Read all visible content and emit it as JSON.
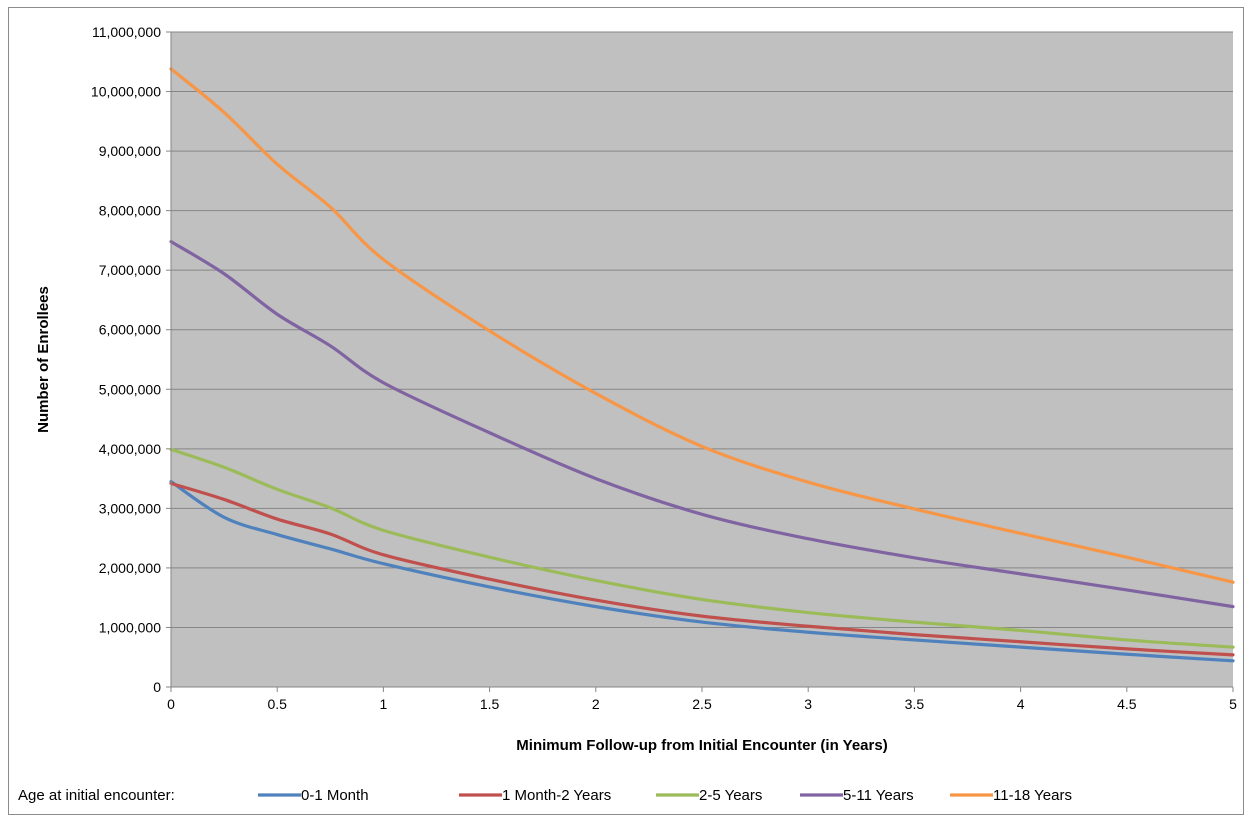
{
  "chart_data": {
    "type": "line",
    "xlabel": "Minimum Follow-up from Initial Encounter (in Years)",
    "ylabel": "Number of Enrollees",
    "xlim": [
      0,
      5
    ],
    "ylim": [
      0,
      11000000
    ],
    "x_ticks": [
      "0",
      "0.5",
      "1",
      "1.5",
      "2",
      "2.5",
      "3",
      "3.5",
      "4",
      "4.5",
      "5"
    ],
    "y_ticks": [
      "0",
      "1,000,000",
      "2,000,000",
      "3,000,000",
      "4,000,000",
      "5,000,000",
      "6,000,000",
      "7,000,000",
      "8,000,000",
      "9,000,000",
      "10,000,000",
      "11,000,000"
    ],
    "grid": "horizontal",
    "plot_background": "#c0c0c0",
    "legend_title": "Age at initial encounter:",
    "legend_position": "bottom",
    "x": [
      0,
      0.25,
      0.5,
      0.75,
      1,
      1.5,
      2,
      2.5,
      3,
      3.5,
      4,
      4.5,
      5
    ],
    "series": [
      {
        "name": "0-1 Month",
        "color": "#4f81bd",
        "values": [
          3450000,
          2850000,
          2560000,
          2320000,
          2070000,
          1680000,
          1350000,
          1090000,
          920000,
          790000,
          670000,
          550000,
          440000
        ]
      },
      {
        "name": "1 Month-2 Years",
        "color": "#c0504d",
        "values": [
          3420000,
          3150000,
          2820000,
          2570000,
          2220000,
          1810000,
          1460000,
          1190000,
          1020000,
          880000,
          760000,
          640000,
          540000
        ]
      },
      {
        "name": "2-5 Years",
        "color": "#9bbb59",
        "values": [
          3990000,
          3690000,
          3320000,
          3010000,
          2630000,
          2180000,
          1790000,
          1470000,
          1250000,
          1090000,
          950000,
          790000,
          670000
        ]
      },
      {
        "name": "5-11 Years",
        "color": "#8064a2",
        "values": [
          7480000,
          6940000,
          6260000,
          5730000,
          5110000,
          4270000,
          3500000,
          2900000,
          2490000,
          2170000,
          1900000,
          1630000,
          1350000
        ]
      },
      {
        "name": "11-18 Years",
        "color": "#f79646",
        "values": [
          10380000,
          9650000,
          8780000,
          8060000,
          7180000,
          5980000,
          4930000,
          4040000,
          3440000,
          2990000,
          2580000,
          2180000,
          1760000
        ]
      }
    ]
  }
}
